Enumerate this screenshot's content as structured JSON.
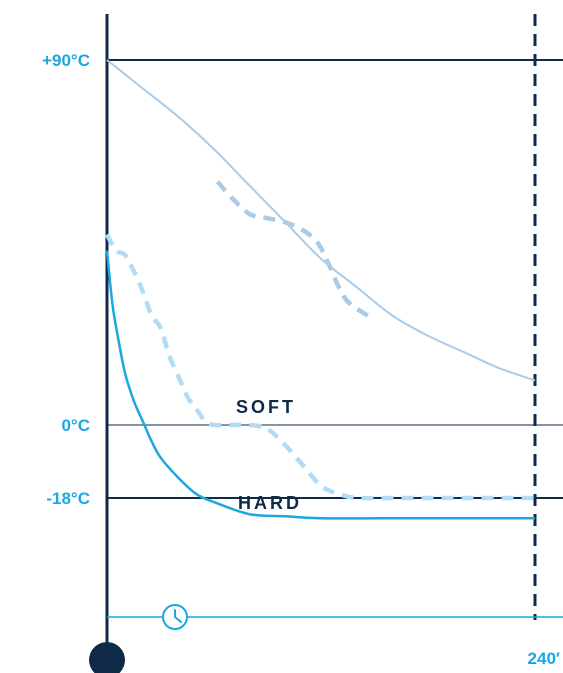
{
  "colors": {
    "axis": "#0e2a47",
    "label_blue": "#19a9e2",
    "hot_curve": "#a9cbe8",
    "hot_dashed": "#a9cbe8",
    "cold_curve": "#1ba7e0",
    "cold_dashed": "#b3dcf4",
    "zero_line": "#0e2a47",
    "baseline": "#1ba7e0"
  },
  "icons": {
    "timer": "clock-icon",
    "origin": "filled-circle"
  },
  "chart_data": {
    "type": "line",
    "title": "",
    "xlabel": "",
    "ylabel": "",
    "xlim": [
      0,
      240
    ],
    "ylim": [
      -60,
      90
    ],
    "x_end_label": "240′",
    "y_tick_labels": [
      {
        "value": 90,
        "label": "+90°C"
      },
      {
        "value": 0,
        "label": "0°C"
      },
      {
        "value": -18,
        "label": "-18°C"
      }
    ],
    "annotations": {
      "soft_label": "SOFT",
      "hard_label": "HARD"
    },
    "series": [
      {
        "style": "solid-light",
        "x": [
          0,
          20,
          40,
          60,
          80,
          100,
          120,
          140,
          160,
          180,
          200,
          220,
          240
        ],
        "y": [
          90,
          83,
          76,
          68,
          59,
          50,
          41,
          34,
          27,
          22,
          18,
          14,
          11
        ]
      },
      {
        "style": "dashed-light",
        "x": [
          62,
          70,
          80,
          90,
          100,
          110,
          118,
          124,
          130,
          136,
          150
        ],
        "y": [
          60,
          56,
          52,
          51,
          50,
          48,
          45,
          40,
          34,
          30,
          26
        ]
      },
      {
        "style": "solid-blue",
        "x": [
          0,
          3,
          6,
          10,
          15,
          20,
          25,
          30,
          40,
          50,
          60,
          80,
          100,
          120,
          160,
          200,
          240
        ],
        "y": [
          43,
          30,
          22,
          13,
          6,
          1,
          -4,
          -8,
          -13,
          -17,
          -19,
          -22,
          -22.5,
          -23,
          -23,
          -23,
          -23
        ]
      },
      {
        "style": "dashed-blue",
        "x": [
          0,
          5,
          10,
          15,
          20,
          25,
          30,
          35,
          40,
          45,
          50,
          55,
          60,
          70,
          80,
          90,
          100,
          110,
          120,
          130,
          140,
          160,
          200,
          240
        ],
        "y": [
          47,
          43,
          42,
          38,
          33,
          27,
          24,
          17,
          12,
          7,
          4,
          1,
          0,
          0,
          0,
          -1,
          -5,
          -10,
          -15,
          -17,
          -18,
          -18,
          -18,
          -18
        ]
      }
    ]
  }
}
